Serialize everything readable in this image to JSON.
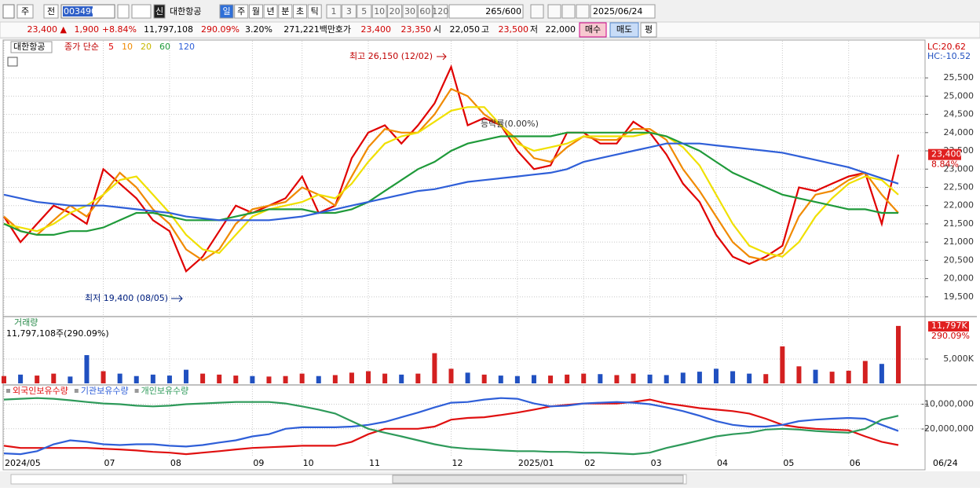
{
  "toolbar": {
    "market": "주",
    "scope": "전",
    "code": "003490",
    "badge": "신",
    "name": "대한항공",
    "periods": [
      "일",
      "주",
      "월",
      "년",
      "분",
      "초",
      "틱"
    ],
    "intervals": [
      "1",
      "3",
      "5",
      "10",
      "20",
      "30",
      "60",
      "120"
    ],
    "count": "265/600",
    "date": "2025/06/24"
  },
  "quote": [
    {
      "text": "23,400 ▲",
      "color": "#d00000"
    },
    {
      "text": "1,900",
      "color": "#d00000"
    },
    {
      "text": "+8.84%",
      "color": "#d00000"
    },
    {
      "text": "11,797,108",
      "color": "#000000"
    },
    {
      "text": "290.09%",
      "color": "#d00000"
    },
    {
      "text": "3.20%",
      "color": "#000000"
    },
    {
      "text": "271,221백만",
      "color": "#000000"
    },
    {
      "text": "호가",
      "color": "#000000"
    },
    {
      "text": "23,400",
      "color": "#d00000"
    },
    {
      "text": "23,350",
      "color": "#d00000"
    },
    {
      "text": "시",
      "color": "#000000"
    },
    {
      "text": "22,050",
      "color": "#000000"
    },
    {
      "text": "고",
      "color": "#000000"
    },
    {
      "text": "23,500",
      "color": "#d00000"
    },
    {
      "text": "저",
      "color": "#000000"
    },
    {
      "text": "22,000",
      "color": "#000000"
    }
  ],
  "orders": {
    "buy": "매수",
    "sell": "매도",
    "avg": "평"
  },
  "chart_data": [
    {
      "type": "line",
      "title": "대한항공",
      "subtitle": "종가 단순",
      "categories": [
        "2024/05",
        null,
        null,
        null,
        null,
        null,
        "07",
        null,
        null,
        null,
        "08",
        null,
        null,
        null,
        null,
        "09",
        null,
        null,
        "10",
        null,
        null,
        null,
        "11",
        null,
        null,
        null,
        null,
        "12",
        null,
        null,
        null,
        "2025/01",
        null,
        null,
        null,
        "02",
        null,
        null,
        null,
        "03",
        null,
        null,
        null,
        "04",
        null,
        null,
        null,
        "05",
        null,
        null,
        null,
        "06",
        null,
        null,
        null
      ],
      "series": [
        {
          "name": "5",
          "color": "#e00000",
          "values": [
            21700,
            21000,
            21500,
            22000,
            21800,
            21500,
            23000,
            22600,
            22200,
            21600,
            21300,
            20200,
            20600,
            21300,
            22000,
            21800,
            22000,
            22200,
            22800,
            21800,
            22000,
            23300,
            24000,
            24200,
            23700,
            24200,
            24800,
            25800,
            24200,
            24400,
            24200,
            23500,
            23000,
            23100,
            24000,
            24000,
            23700,
            23700,
            24300,
            24000,
            23400,
            22600,
            22100,
            21200,
            20600,
            20400,
            20600,
            20900,
            22500,
            22400,
            22600,
            22800,
            22900,
            21500,
            23400
          ]
        },
        {
          "name": "10",
          "color": "#f08a00",
          "values": [
            21700,
            21300,
            21200,
            21600,
            22000,
            21700,
            22300,
            22900,
            22500,
            21900,
            21500,
            20800,
            20500,
            20800,
            21500,
            21900,
            22000,
            22100,
            22500,
            22300,
            22000,
            22800,
            23600,
            24100,
            24000,
            24000,
            24500,
            25200,
            25000,
            24500,
            24200,
            23800,
            23300,
            23200,
            23600,
            23900,
            23800,
            23800,
            24100,
            24100,
            23800,
            23000,
            22400,
            21700,
            21000,
            20600,
            20500,
            20700,
            21700,
            22300,
            22400,
            22700,
            22900,
            22300,
            21800
          ]
        },
        {
          "name": "20",
          "color": "#f0e000",
          "values": [
            21500,
            21400,
            21300,
            21500,
            21800,
            22000,
            22300,
            22700,
            22800,
            22300,
            21800,
            21200,
            20800,
            20700,
            21200,
            21700,
            21900,
            22000,
            22100,
            22300,
            22200,
            22600,
            23200,
            23700,
            23900,
            24000,
            24300,
            24600,
            24700,
            24700,
            24200,
            23700,
            23500,
            23600,
            23700,
            23900,
            23900,
            23900,
            23900,
            24000,
            23900,
            23600,
            23100,
            22300,
            21500,
            20900,
            20700,
            20600,
            21000,
            21700,
            22200,
            22600,
            22800,
            22700,
            22300
          ]
        },
        {
          "name": "60",
          "color": "#1f9a3a",
          "values": [
            21500,
            21300,
            21200,
            21200,
            21300,
            21300,
            21400,
            21600,
            21800,
            21800,
            21700,
            21600,
            21600,
            21600,
            21700,
            21800,
            21900,
            21900,
            21900,
            21800,
            21800,
            21900,
            22100,
            22400,
            22700,
            23000,
            23200,
            23500,
            23700,
            23800,
            23900,
            23900,
            23900,
            23900,
            24000,
            24000,
            24000,
            24000,
            24000,
            24000,
            23900,
            23700,
            23500,
            23200,
            22900,
            22700,
            22500,
            22300,
            22200,
            22100,
            22000,
            21900,
            21900,
            21800,
            21800
          ]
        },
        {
          "name": "120",
          "color": "#2f5fd8",
          "values": [
            22300,
            22200,
            22100,
            22050,
            22000,
            22000,
            22000,
            21950,
            21900,
            21850,
            21800,
            21700,
            21650,
            21600,
            21600,
            21600,
            21600,
            21650,
            21700,
            21800,
            21900,
            22000,
            22100,
            22200,
            22300,
            22400,
            22450,
            22550,
            22650,
            22700,
            22750,
            22800,
            22850,
            22900,
            23000,
            23200,
            23300,
            23400,
            23500,
            23600,
            23700,
            23700,
            23700,
            23650,
            23600,
            23550,
            23500,
            23450,
            23350,
            23250,
            23150,
            23050,
            22900,
            22750,
            22600
          ]
        }
      ],
      "ylim": [
        18980,
        26450
      ],
      "yticks": [
        {
          "value": 19500,
          "label": "19,500"
        },
        {
          "value": 20000,
          "label": "20,000"
        },
        {
          "value": 20500,
          "label": "20,500"
        },
        {
          "value": 21000,
          "label": "21,000"
        },
        {
          "value": 21500,
          "label": "21,500"
        },
        {
          "value": 22000,
          "label": "22,000"
        },
        {
          "value": 22500,
          "label": "22,500"
        },
        {
          "value": 23000,
          "label": "23,000"
        },
        {
          "value": 23500,
          "label": "23,500"
        },
        {
          "value": 24000,
          "label": "24,000"
        },
        {
          "value": 24500,
          "label": "24,500"
        },
        {
          "value": 25000,
          "label": "25,000"
        },
        {
          "value": 25500,
          "label": "25,500"
        }
      ],
      "annotations": [
        "최고 26,150 (12/02)",
        "최저 19,400 (08/05)",
        "등락률(0.00%)"
      ],
      "last_label": "23,400",
      "change_label": "8.84%",
      "lc": "LC:20.62",
      "hc": "HC:-10.52",
      "last_date": "06/24"
    },
    {
      "type": "bar",
      "title": "거래량",
      "subtitle": "11,797,108주(290.09%)",
      "values": [
        1500,
        1800,
        1600,
        2000,
        1400,
        5800,
        2500,
        2000,
        1500,
        1800,
        1600,
        2800,
        2000,
        1800,
        1600,
        1500,
        1400,
        1500,
        2000,
        1500,
        1700,
        2200,
        2500,
        2000,
        1800,
        2000,
        6200,
        3000,
        2200,
        1800,
        1600,
        1500,
        1700,
        1600,
        1800,
        2000,
        1900,
        1700,
        2000,
        1800,
        1700,
        2200,
        2400,
        3000,
        2500,
        2000,
        1900,
        7600,
        3500,
        2800,
        2400,
        2600,
        4600,
        4000,
        11797
      ],
      "up_color": "#d32020",
      "down_color": "#2050c0",
      "ylim": [
        0,
        13390
      ],
      "yticks": [
        {
          "value": 5000,
          "label": "5,000K"
        }
      ],
      "last_label": "11,797K",
      "ratio_label": "290.09%"
    },
    {
      "type": "line",
      "series": [
        {
          "name": "외국인보유수량",
          "color": "#e01010",
          "values": [
            -26900000,
            -27800000,
            -27800000,
            -27800000,
            -27800000,
            -27800000,
            -28100000,
            -28400000,
            -28800000,
            -29400000,
            -29700000,
            -30300000,
            -29700000,
            -29100000,
            -28400000,
            -27800000,
            -27500000,
            -27200000,
            -26900000,
            -26900000,
            -26900000,
            -25300000,
            -22200000,
            -20000000,
            -20000000,
            -20000000,
            -19100000,
            -16300000,
            -15600000,
            -15300000,
            -14400000,
            -13400000,
            -12200000,
            -10900000,
            -10300000,
            -9700000,
            -9700000,
            -9700000,
            -9100000,
            -8100000,
            -9700000,
            -10600000,
            -11600000,
            -12200000,
            -12800000,
            -13800000,
            -15900000,
            -18400000,
            -19400000,
            -20000000,
            -20300000,
            -20600000,
            -23100000,
            -25300000,
            -26600000
          ]
        },
        {
          "name": "기관보유수량",
          "color": "#2f5fd8",
          "values": [
            -30000000,
            -30300000,
            -29100000,
            -26300000,
            -24700000,
            -25300000,
            -26300000,
            -26600000,
            -26300000,
            -26300000,
            -26900000,
            -27200000,
            -26600000,
            -25600000,
            -24700000,
            -23100000,
            -22200000,
            -20000000,
            -19400000,
            -19400000,
            -19400000,
            -19100000,
            -18400000,
            -17200000,
            -15300000,
            -13400000,
            -11300000,
            -9400000,
            -9100000,
            -8100000,
            -7500000,
            -7800000,
            -9700000,
            -10900000,
            -10600000,
            -9700000,
            -9400000,
            -9100000,
            -9400000,
            -10000000,
            -11300000,
            -12800000,
            -14700000,
            -16900000,
            -18400000,
            -19100000,
            -19100000,
            -18400000,
            -16900000,
            -16300000,
            -15900000,
            -15600000,
            -15900000,
            -18400000,
            -20900000
          ]
        },
        {
          "name": "개인보유수량",
          "color": "#2e9a5a",
          "values": [
            -8100000,
            -7800000,
            -7500000,
            -7800000,
            -8400000,
            -9100000,
            -9700000,
            -10000000,
            -10600000,
            -10900000,
            -10600000,
            -10000000,
            -9700000,
            -9400000,
            -9100000,
            -9100000,
            -9100000,
            -9700000,
            -10900000,
            -12200000,
            -13800000,
            -16900000,
            -20000000,
            -21600000,
            -23100000,
            -24700000,
            -26300000,
            -27500000,
            -28100000,
            -28400000,
            -28800000,
            -29100000,
            -29100000,
            -29400000,
            -29400000,
            -29700000,
            -29700000,
            -30000000,
            -30300000,
            -29700000,
            -27800000,
            -26300000,
            -24700000,
            -23100000,
            -22200000,
            -21600000,
            -20300000,
            -20000000,
            -20300000,
            -20900000,
            -21300000,
            -21600000,
            -20000000,
            -16300000,
            -14700000
          ]
        }
      ],
      "ylim": [
        -31560000,
        -2810000
      ],
      "yticks": [
        {
          "value": -10000000,
          "label": "-10,000,000"
        },
        {
          "value": -20000000,
          "label": "-20,000,000"
        }
      ]
    }
  ]
}
